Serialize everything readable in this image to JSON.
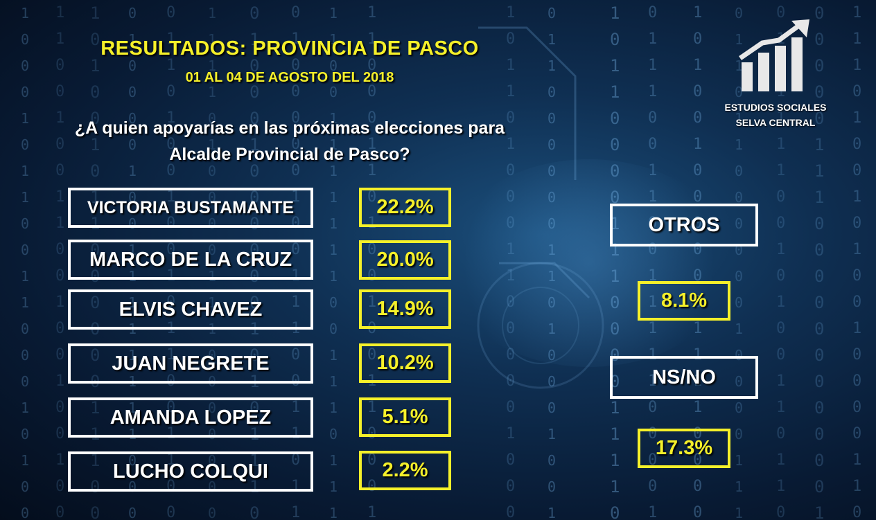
{
  "header": {
    "title": "RESULTADOS: PROVINCIA DE PASCO",
    "date": "01 AL 04 DE AGOSTO DEL 2018"
  },
  "question": {
    "line1": "¿A quien apoyarías en las próximas elecciones para",
    "line2": "Alcalde Provincial de Pasco?"
  },
  "candidates": [
    {
      "name": "VICTORIA BUSTAMANTE",
      "percent": "22.2%"
    },
    {
      "name": "MARCO DE LA CRUZ",
      "percent": "20.0%"
    },
    {
      "name": "ELVIS CHAVEZ",
      "percent": "14.9%"
    },
    {
      "name": "JUAN NEGRETE",
      "percent": "10.2%"
    },
    {
      "name": "AMANDA LOPEZ",
      "percent": "5.1%"
    },
    {
      "name": "LUCHO COLQUI",
      "percent": "2.2%"
    }
  ],
  "others": {
    "label": "OTROS",
    "percent": "8.1%"
  },
  "undecided": {
    "label": "NS/NO",
    "percent": "17.3%"
  },
  "logo": {
    "line1": "ESTUDIOS SOCIALES",
    "line2": "SELVA CENTRAL",
    "icon": "bar-chart-growth-icon"
  },
  "colors": {
    "accent": "#f5f02a",
    "text": "#ffffff",
    "background": "#0a2342"
  }
}
